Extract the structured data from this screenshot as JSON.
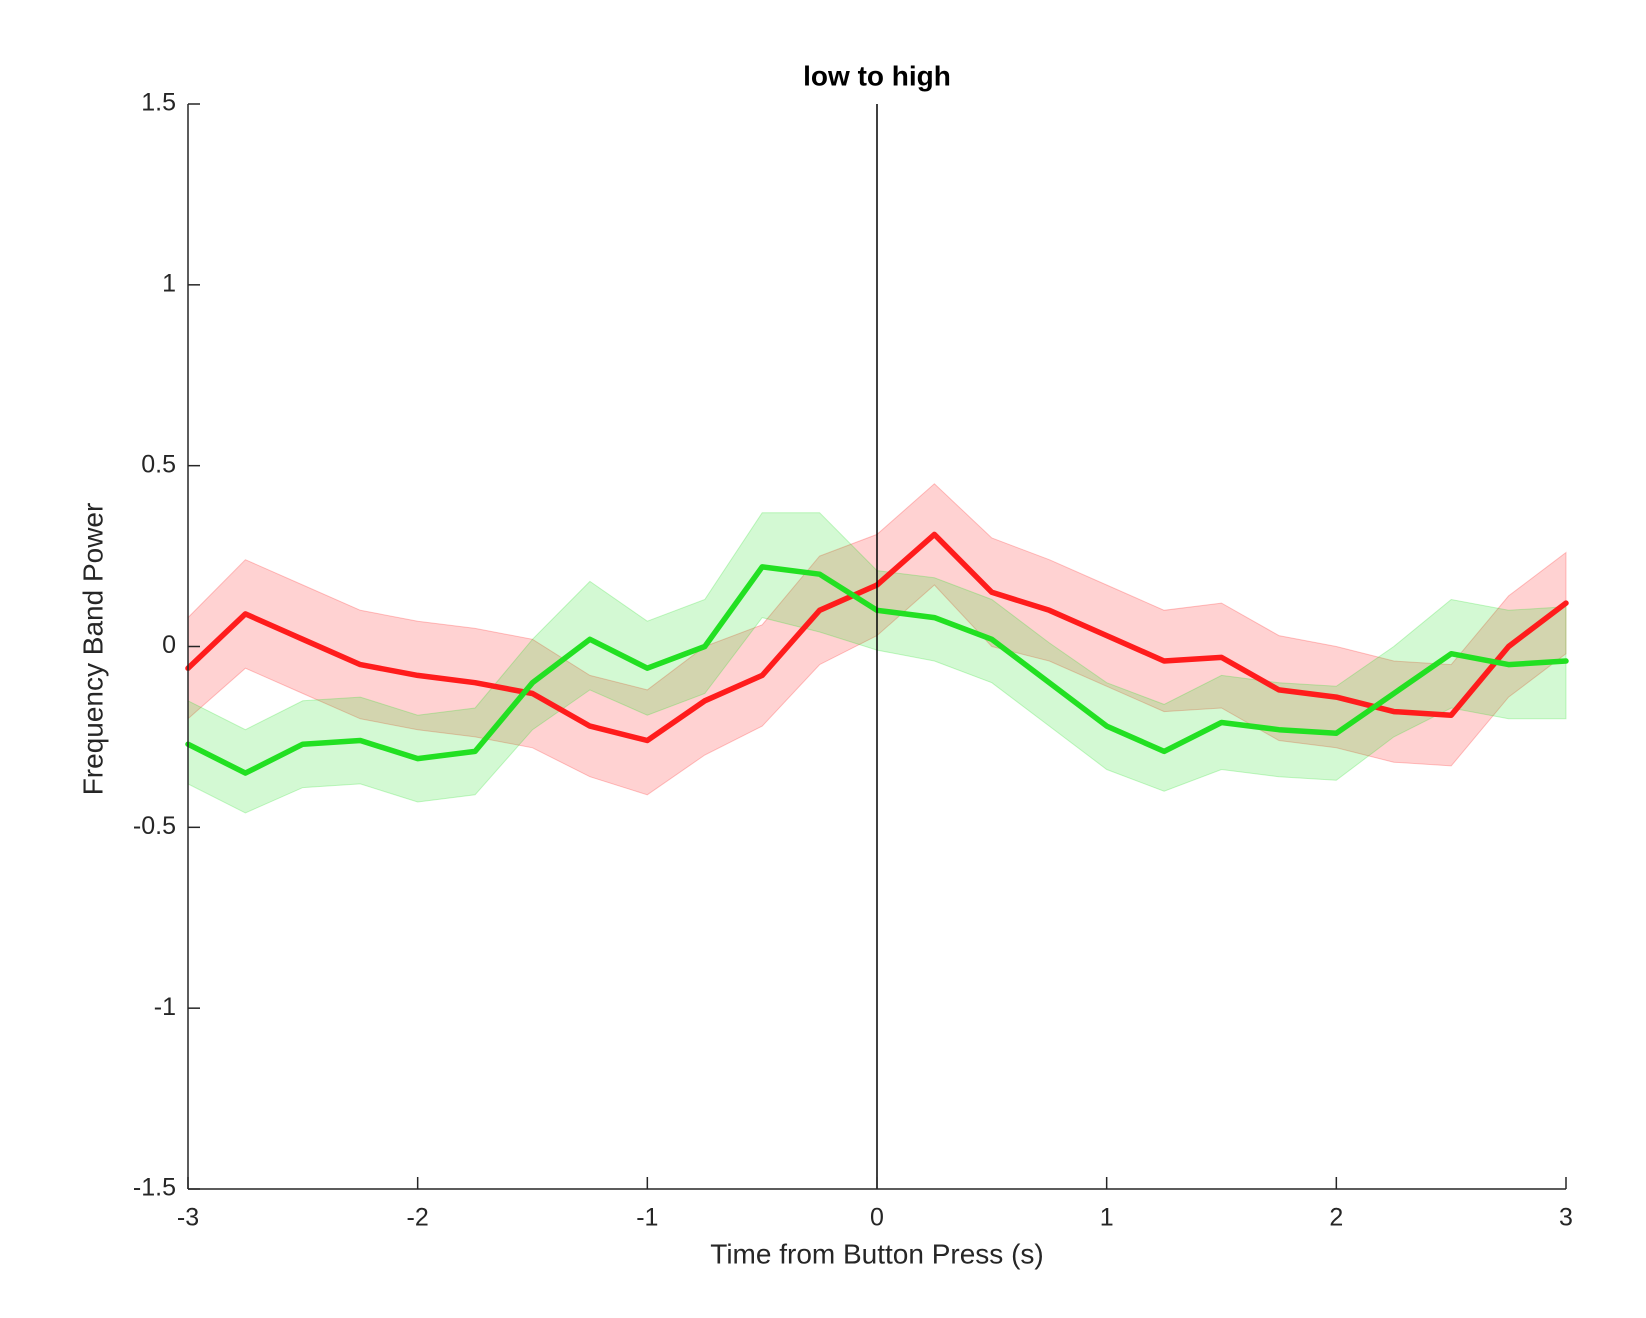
{
  "chart_data": {
    "type": "line",
    "title": "low to high",
    "xlabel": "Time from Button Press (s)",
    "ylabel": "Frequency Band Power",
    "x": [
      -3,
      -2.75,
      -2.5,
      -2.25,
      -2,
      -1.75,
      -1.5,
      -1.25,
      -1,
      -0.75,
      -0.5,
      -0.25,
      0,
      0.25,
      0.5,
      0.75,
      1,
      1.25,
      1.5,
      1.75,
      2,
      2.25,
      2.5,
      2.75,
      3
    ],
    "series": [
      {
        "color": "#ff1c1c",
        "values": [
          -0.06,
          0.09,
          0.02,
          -0.05,
          -0.08,
          -0.1,
          -0.13,
          -0.22,
          -0.26,
          -0.15,
          -0.08,
          0.1,
          0.17,
          0.31,
          0.15,
          0.1,
          0.03,
          -0.04,
          -0.03,
          -0.12,
          -0.14,
          -0.18,
          -0.19,
          0.0,
          0.12
        ],
        "upper": [
          0.08,
          0.24,
          0.17,
          0.1,
          0.07,
          0.05,
          0.02,
          -0.08,
          -0.12,
          0.0,
          0.06,
          0.25,
          0.31,
          0.45,
          0.3,
          0.24,
          0.17,
          0.1,
          0.12,
          0.03,
          0.0,
          -0.04,
          -0.05,
          0.14,
          0.26
        ],
        "lower": [
          -0.2,
          -0.06,
          -0.13,
          -0.2,
          -0.23,
          -0.25,
          -0.28,
          -0.36,
          -0.41,
          -0.3,
          -0.22,
          -0.05,
          0.03,
          0.17,
          0.0,
          -0.04,
          -0.11,
          -0.18,
          -0.17,
          -0.26,
          -0.28,
          -0.32,
          -0.33,
          -0.14,
          -0.02
        ]
      },
      {
        "color": "#22e022",
        "values": [
          -0.27,
          -0.35,
          -0.27,
          -0.26,
          -0.31,
          -0.29,
          -0.1,
          0.02,
          -0.06,
          0.0,
          0.22,
          0.2,
          0.1,
          0.08,
          0.02,
          -0.1,
          -0.22,
          -0.29,
          -0.21,
          -0.23,
          -0.24,
          -0.13,
          -0.02,
          -0.05,
          -0.04
        ],
        "upper": [
          -0.15,
          -0.23,
          -0.15,
          -0.14,
          -0.19,
          -0.17,
          0.02,
          0.18,
          0.07,
          0.13,
          0.37,
          0.37,
          0.21,
          0.19,
          0.13,
          0.01,
          -0.1,
          -0.16,
          -0.08,
          -0.1,
          -0.11,
          0.0,
          0.13,
          0.1,
          0.11
        ],
        "lower": [
          -0.38,
          -0.46,
          -0.39,
          -0.38,
          -0.43,
          -0.41,
          -0.23,
          -0.12,
          -0.19,
          -0.13,
          0.08,
          0.04,
          -0.01,
          -0.04,
          -0.1,
          -0.22,
          -0.34,
          -0.4,
          -0.34,
          -0.36,
          -0.37,
          -0.25,
          -0.17,
          -0.2,
          -0.2
        ]
      }
    ],
    "vlines": [
      0
    ],
    "xlim": [
      -3,
      3
    ],
    "xticks": [
      -3,
      -2,
      -1,
      0,
      1,
      2,
      3
    ],
    "ylim": [
      -1.5,
      1.5
    ],
    "yticks": [
      -1.5,
      -1,
      -0.5,
      0,
      0.5,
      1,
      1.5
    ]
  }
}
